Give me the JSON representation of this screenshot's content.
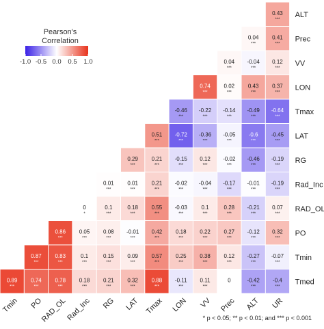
{
  "chart_data": {
    "type": "heatmap",
    "colorscale": {
      "low": "#3b22e6",
      "mid": "#ffffff",
      "high": "#e8331c",
      "range": [
        -1.0,
        1.0
      ]
    },
    "legend": {
      "title_line1": "Pearson's",
      "title_line2": "Correlation",
      "ticks": [
        "-1.0",
        "-0.5",
        "0.0",
        "0.5",
        "1.0"
      ],
      "placement": "top-left"
    },
    "x_labels": [
      "Tmin",
      "PO",
      "RAD_OL",
      "Rad_Inc",
      "RG",
      "LAT",
      "Tmax",
      "LON",
      "VV",
      "Prec",
      "ALT",
      "UR"
    ],
    "y_labels": [
      "ALT",
      "Prec",
      "VV",
      "LON",
      "Tmax",
      "LAT",
      "RG",
      "Rad_Inc",
      "RAD_OL",
      "PO",
      "Tmin",
      "Tmed"
    ],
    "rows": [
      {
        "label": "ALT",
        "values": [
          null,
          null,
          null,
          null,
          null,
          null,
          null,
          null,
          null,
          null,
          null,
          0.43
        ],
        "signif": [
          null,
          null,
          null,
          null,
          null,
          null,
          null,
          null,
          null,
          null,
          null,
          "***"
        ]
      },
      {
        "label": "Prec",
        "values": [
          null,
          null,
          null,
          null,
          null,
          null,
          null,
          null,
          null,
          null,
          0.04,
          0.41
        ],
        "signif": [
          null,
          null,
          null,
          null,
          null,
          null,
          null,
          null,
          null,
          null,
          "***",
          "***"
        ]
      },
      {
        "label": "VV",
        "values": [
          null,
          null,
          null,
          null,
          null,
          null,
          null,
          null,
          null,
          0.04,
          -0.04,
          0.12
        ],
        "signif": [
          null,
          null,
          null,
          null,
          null,
          null,
          null,
          null,
          null,
          "***",
          "***",
          "***"
        ]
      },
      {
        "label": "LON",
        "values": [
          null,
          null,
          null,
          null,
          null,
          null,
          null,
          null,
          0.74,
          0.02,
          0.43,
          0.37
        ],
        "signif": [
          null,
          null,
          null,
          null,
          null,
          null,
          null,
          null,
          "***",
          "***",
          "***",
          "***"
        ]
      },
      {
        "label": "Tmax",
        "values": [
          null,
          null,
          null,
          null,
          null,
          null,
          null,
          -0.46,
          -0.22,
          -0.14,
          -0.49,
          -0.64
        ],
        "signif": [
          null,
          null,
          null,
          null,
          null,
          null,
          null,
          "***",
          "***",
          "***",
          "***",
          "***"
        ]
      },
      {
        "label": "LAT",
        "values": [
          null,
          null,
          null,
          null,
          null,
          null,
          0.51,
          -0.72,
          -0.36,
          -0.05,
          -0.6,
          -0.45
        ],
        "signif": [
          null,
          null,
          null,
          null,
          null,
          null,
          "***",
          "***",
          "***",
          "***",
          "***",
          "***"
        ]
      },
      {
        "label": "RG",
        "values": [
          null,
          null,
          null,
          null,
          null,
          0.29,
          0.21,
          -0.15,
          0.12,
          -0.02,
          -0.46,
          -0.19
        ],
        "signif": [
          null,
          null,
          null,
          null,
          null,
          "***",
          "***",
          "***",
          "***",
          "***",
          "***",
          "***"
        ]
      },
      {
        "label": "Rad_Inc",
        "values": [
          null,
          null,
          null,
          null,
          0.01,
          0.01,
          0.21,
          -0.02,
          -0.04,
          -0.17,
          -0.01,
          -0.19
        ],
        "signif": [
          null,
          null,
          null,
          null,
          "***",
          "***",
          "***",
          "***",
          "***",
          "***",
          "***",
          "***"
        ]
      },
      {
        "label": "RAD_OL",
        "values": [
          null,
          null,
          null,
          0,
          0.1,
          0.18,
          0.55,
          -0.03,
          0.1,
          0.28,
          -0.21,
          0.07
        ],
        "signif": [
          null,
          null,
          null,
          "*",
          "***",
          "***",
          "***",
          "***",
          "***",
          "***",
          "***",
          "***"
        ]
      },
      {
        "label": "PO",
        "values": [
          null,
          null,
          0.86,
          0.05,
          0.08,
          -0.01,
          0.42,
          0.18,
          0.22,
          0.27,
          -0.12,
          0.32
        ],
        "signif": [
          null,
          null,
          "***",
          "***",
          "***",
          "***",
          "***",
          "***",
          "***",
          "***",
          "***",
          "***"
        ]
      },
      {
        "label": "Tmin",
        "values": [
          null,
          0.87,
          0.83,
          0.1,
          0.15,
          0.09,
          0.57,
          0.25,
          0.38,
          0.12,
          -0.27,
          -0.07
        ],
        "signif": [
          null,
          "***",
          "***",
          "***",
          "***",
          "***",
          "***",
          "***",
          "***",
          "***",
          "***",
          "***"
        ]
      },
      {
        "label": "Tmed",
        "values": [
          0.89,
          0.74,
          0.78,
          0.18,
          0.21,
          0.32,
          0.88,
          -0.11,
          0.11,
          0,
          -0.42,
          -0.4
        ],
        "signif": [
          "***",
          "***",
          "***",
          "***",
          "***",
          "***",
          "***",
          "***",
          "***",
          null,
          "***",
          "***"
        ]
      }
    ],
    "footnote": "* p < 0.05; ** p < 0.01; and *** p < 0.001"
  }
}
